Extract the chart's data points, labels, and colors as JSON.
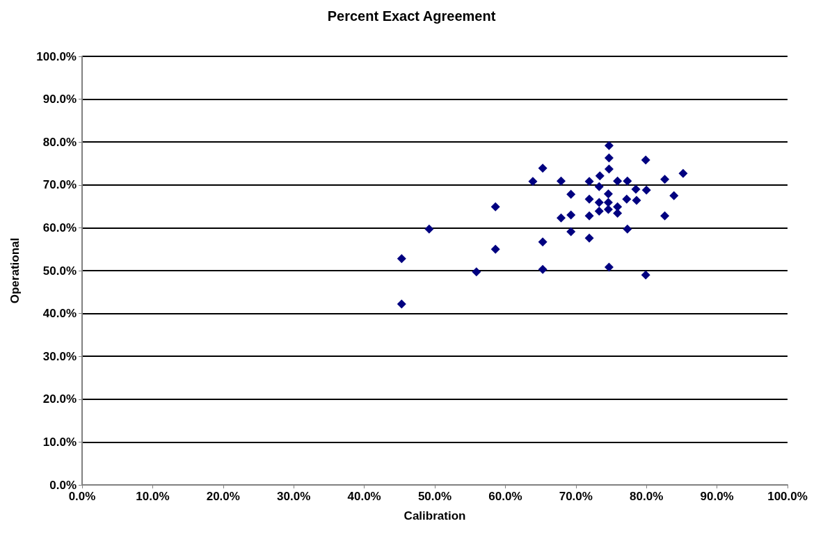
{
  "chart_data": {
    "type": "scatter",
    "title": "Percent Exact Agreement",
    "xlabel": "Calibration",
    "ylabel": "Operational",
    "xlim": [
      0,
      100
    ],
    "ylim": [
      0,
      100
    ],
    "xticks": [
      {
        "value": 0,
        "label": "0.0%"
      },
      {
        "value": 10,
        "label": "10.0%"
      },
      {
        "value": 20,
        "label": "20.0%"
      },
      {
        "value": 30,
        "label": "30.0%"
      },
      {
        "value": 40,
        "label": "40.0%"
      },
      {
        "value": 50,
        "label": "50.0%"
      },
      {
        "value": 60,
        "label": "60.0%"
      },
      {
        "value": 70,
        "label": "70.0%"
      },
      {
        "value": 80,
        "label": "80.0%"
      },
      {
        "value": 90,
        "label": "90.0%"
      },
      {
        "value": 100,
        "label": "100.0%"
      }
    ],
    "yticks": [
      {
        "value": 0,
        "label": "0.0%"
      },
      {
        "value": 10,
        "label": "10.0%"
      },
      {
        "value": 20,
        "label": "20.0%"
      },
      {
        "value": 30,
        "label": "30.0%"
      },
      {
        "value": 40,
        "label": "40.0%"
      },
      {
        "value": 50,
        "label": "50.0%"
      },
      {
        "value": 60,
        "label": "60.0%"
      },
      {
        "value": 70,
        "label": "70.0%"
      },
      {
        "value": 80,
        "label": "80.0%"
      },
      {
        "value": 90,
        "label": "90.0%"
      },
      {
        "value": 100,
        "label": "100.0%"
      }
    ],
    "grid": "y",
    "marker": "diamond",
    "series": [
      {
        "color": "#000080",
        "x": [
          45.3,
          45.3,
          49.2,
          55.9,
          58.6,
          58.6,
          63.9,
          65.3,
          65.3,
          65.3,
          67.9,
          67.9,
          69.3,
          69.3,
          69.3,
          71.9,
          71.9,
          71.9,
          71.9,
          73.4,
          73.3,
          73.3,
          73.3,
          74.7,
          74.7,
          74.7,
          74.6,
          74.6,
          74.6,
          74.7,
          75.9,
          75.9,
          75.9,
          77.3,
          77.2,
          77.3,
          78.5,
          78.6,
          79.9,
          80.0,
          79.9,
          82.6,
          82.6,
          83.9,
          85.2
        ],
        "values": [
          42.2,
          52.8,
          59.7,
          49.7,
          64.9,
          55.0,
          70.8,
          73.9,
          56.7,
          50.3,
          70.9,
          62.3,
          67.8,
          63.0,
          59.1,
          70.8,
          66.7,
          62.8,
          57.6,
          72.1,
          69.6,
          65.9,
          63.9,
          79.2,
          76.3,
          73.7,
          67.9,
          65.9,
          64.3,
          50.8,
          70.9,
          64.9,
          63.4,
          70.9,
          66.7,
          59.7,
          69.0,
          66.4,
          75.8,
          68.8,
          49.0,
          71.3,
          62.8,
          67.5,
          72.7
        ]
      }
    ]
  }
}
